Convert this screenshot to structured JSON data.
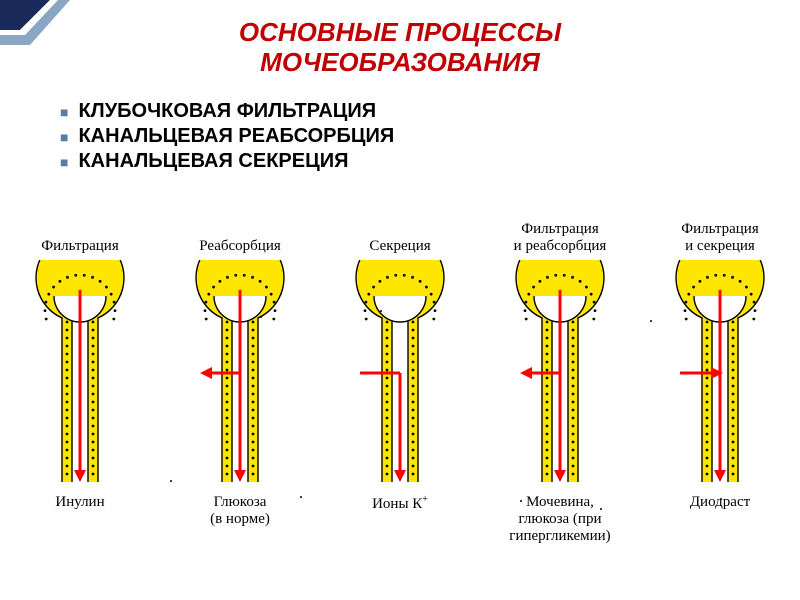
{
  "colors": {
    "title": "#c00000",
    "bullet_marker": "#5b7ca2",
    "bullet_text": "#000000",
    "nephron_fill": "#ffe600",
    "nephron_outline": "#000000",
    "arrow": "#ff0000",
    "label": "#000000",
    "accent_navy": "#1a2a5a",
    "accent_light": "#8aa6c2"
  },
  "title": {
    "line1": "ОСНОВНЫЕ  ПРОЦЕССЫ",
    "line2": "МОЧЕОБРАЗОВАНИЯ",
    "fontsize": 26
  },
  "bullets": {
    "fontsize": 20,
    "items": [
      "КЛУБОЧКОВАЯ  ФИЛЬТРАЦИЯ",
      "КАНАЛЬЦЕВАЯ РЕАБСОРБЦИЯ",
      "КАНАЛЬЦЕВАЯ СЕКРЕЦИЯ"
    ]
  },
  "nephron_style": {
    "cell_dot_radius": 1.4,
    "outline_width": 1.4,
    "arrow_width": 3
  },
  "nephrons": [
    {
      "top_label": "Фильтрация",
      "bottom_label": "Инулин",
      "arrows": [
        "filtration"
      ]
    },
    {
      "top_label": "Реабсорбция",
      "bottom_label": "Глюкоза\n(в норме)",
      "arrows": [
        "filtration",
        "reabsorption"
      ]
    },
    {
      "top_label": "Секреция",
      "bottom_label": "Ионы К⁺",
      "arrows": [
        "secretion"
      ]
    },
    {
      "top_label": "Фильтрация\nи реабсорбция",
      "bottom_label": "Мочевина,\nглюкоза (при\nгипергликемии)",
      "arrows": [
        "filtration",
        "reabsorption"
      ]
    },
    {
      "top_label": "Фильтрация\nи секреция",
      "bottom_label": "Диодраст",
      "arrows": [
        "filtration",
        "secretion"
      ]
    }
  ]
}
